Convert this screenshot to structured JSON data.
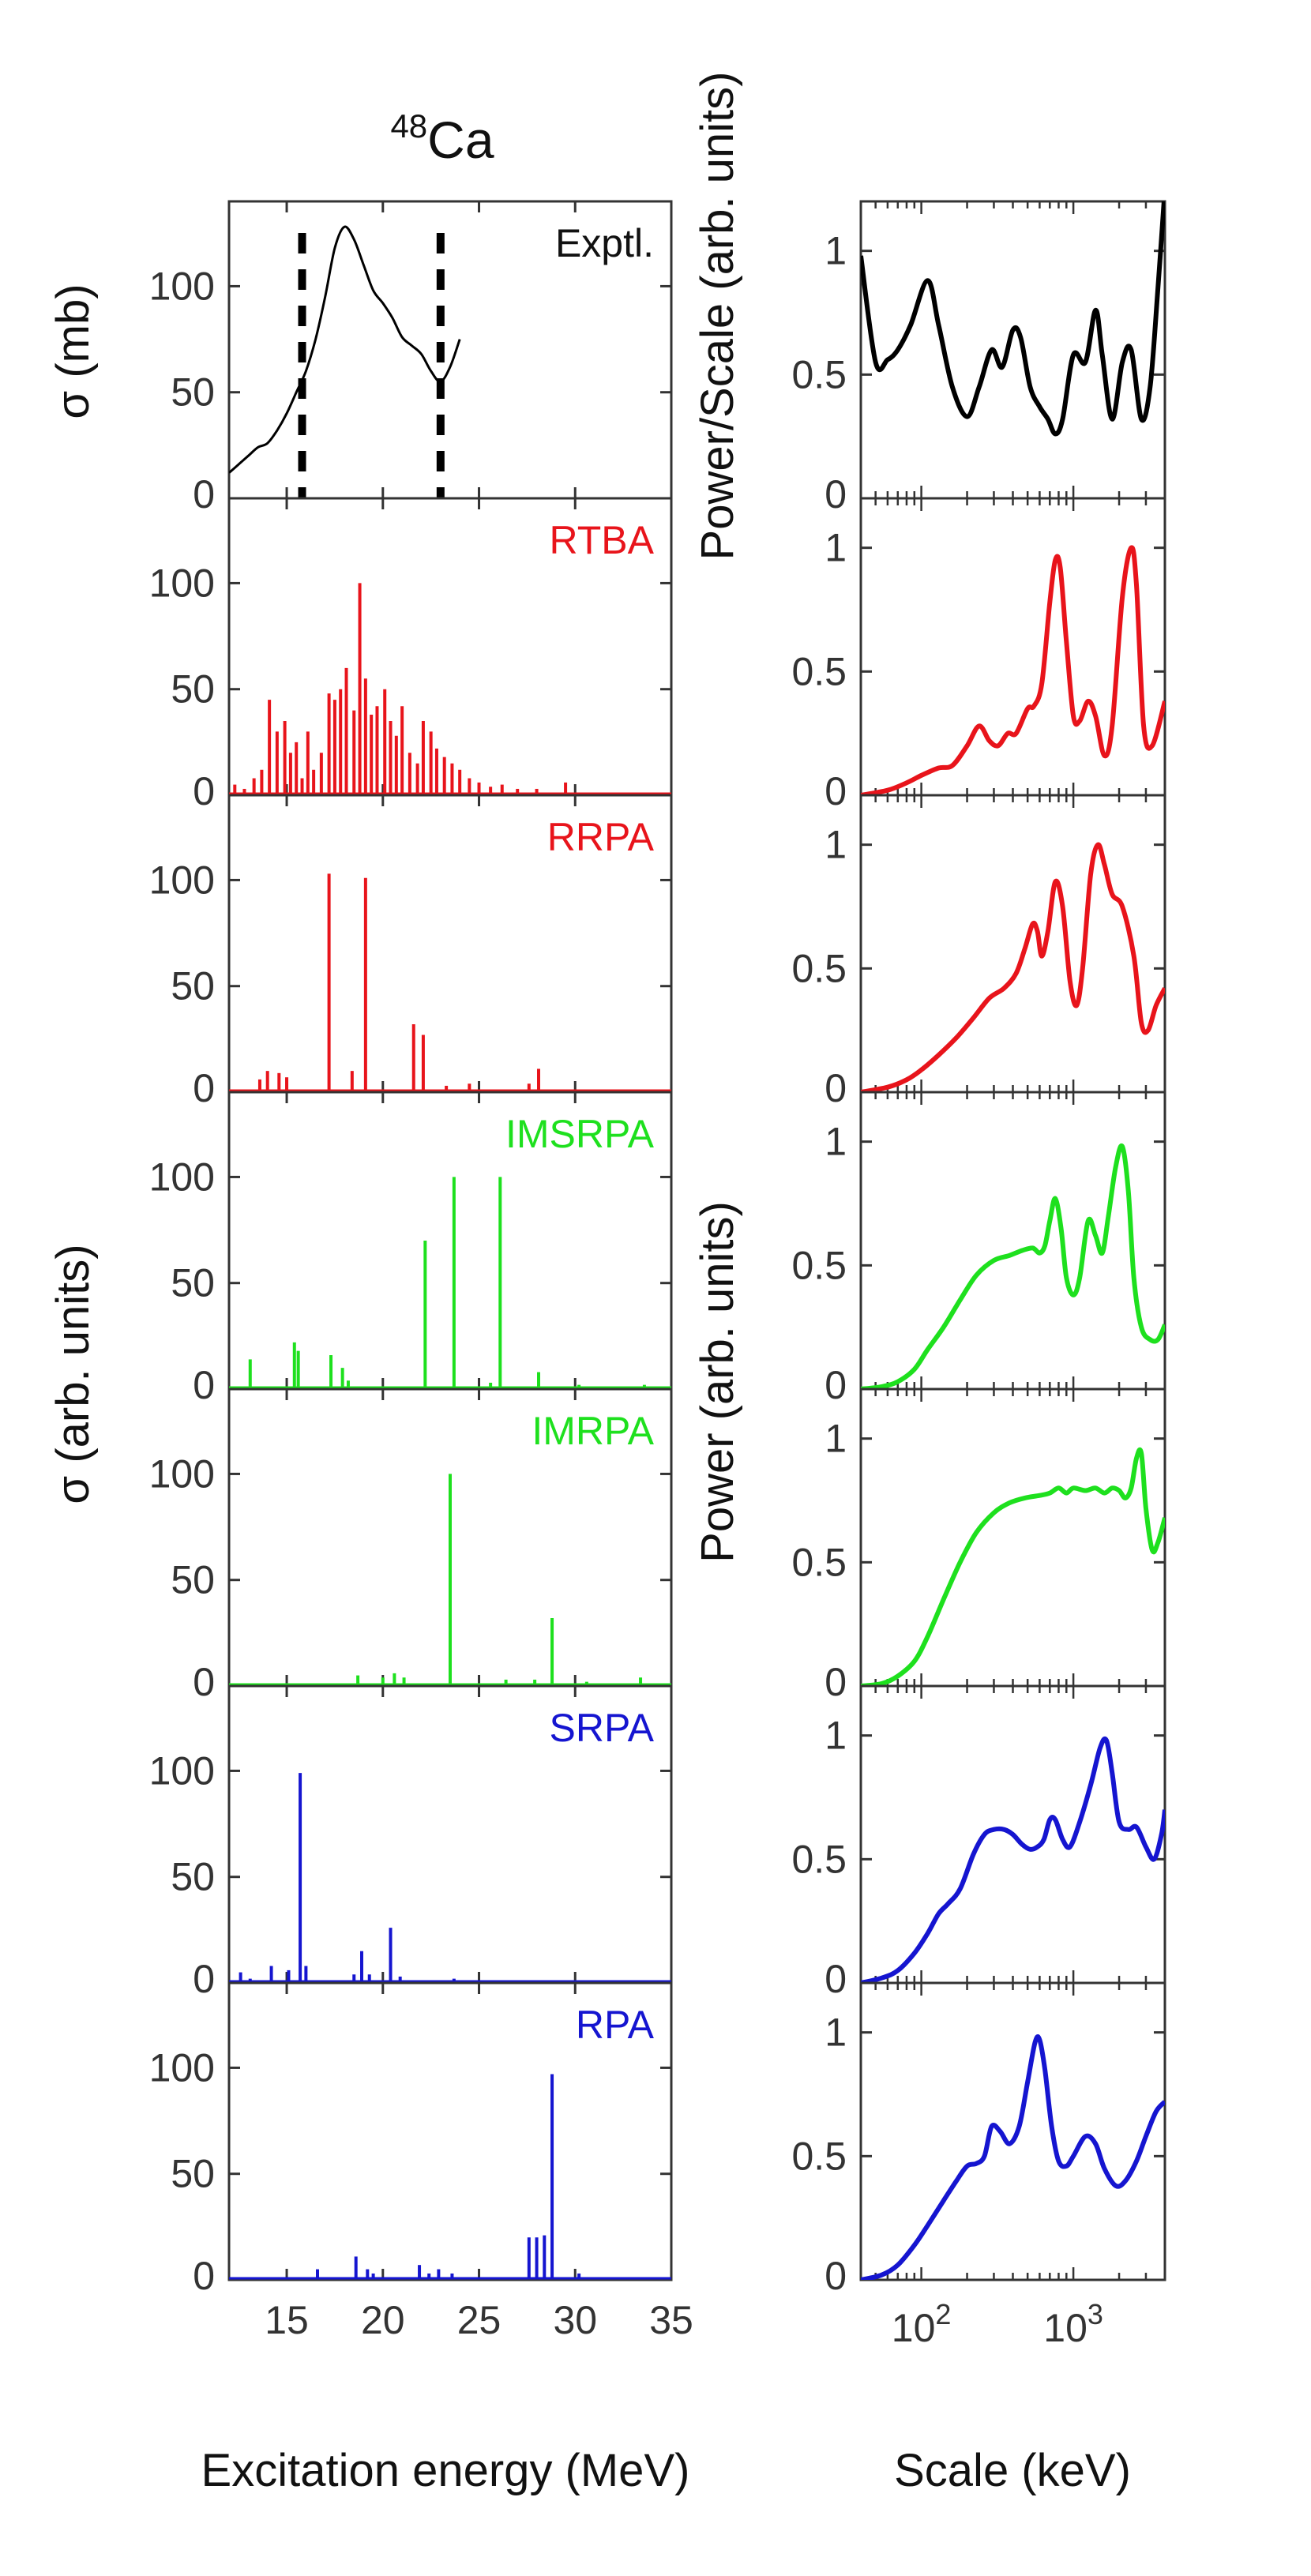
{
  "figure_title": {
    "superscript": "48",
    "element": "Ca"
  },
  "left_axis": {
    "ylabel_top": "σ (mb)",
    "ylabel_bottom": "σ (arb. units)",
    "xlabel": "Excitation energy (MeV)",
    "xticks": [
      "15",
      "20",
      "25",
      "30",
      "35"
    ]
  },
  "right_axis": {
    "ylabel_top": "Power/Scale (arb. units)",
    "ylabel_bottom": "Power (arb. units)",
    "xlabel": "Scale (keV)",
    "xticks": [
      {
        "base": "10",
        "exp": "2"
      },
      {
        "base": "10",
        "exp": "3"
      }
    ]
  },
  "colors": {
    "black": "#000000",
    "red": "#e8141b",
    "green": "#1ee01e",
    "blue": "#1515d0"
  },
  "chart_data": [
    {
      "type": "line",
      "panel": "left",
      "label": "Exptl.",
      "color": "black",
      "xlim": [
        12,
        35
      ],
      "ylim": [
        0,
        140
      ],
      "yticks": [
        "0",
        "50",
        "100"
      ],
      "dashed_markers_x": [
        15.8,
        23.0
      ],
      "x": [
        12.0,
        12.5,
        13.0,
        13.5,
        14.0,
        14.5,
        15.0,
        15.5,
        16.0,
        16.5,
        17.0,
        17.5,
        18.0,
        18.5,
        19.0,
        19.5,
        20.0,
        20.5,
        21.0,
        21.5,
        22.0,
        22.5,
        23.0,
        23.5,
        24.0
      ],
      "y": [
        12,
        16,
        20,
        24,
        26,
        32,
        40,
        50,
        60,
        75,
        95,
        118,
        128,
        122,
        110,
        98,
        92,
        85,
        76,
        72,
        68,
        60,
        55,
        62,
        75
      ]
    },
    {
      "type": "bar",
      "panel": "left",
      "label": "RTBA",
      "color": "red",
      "xlim": [
        12,
        35
      ],
      "ylim": [
        0,
        140
      ],
      "yticks": [
        "0",
        "50",
        "100"
      ],
      "x": [
        12.3,
        12.8,
        13.3,
        13.7,
        14.1,
        14.5,
        14.9,
        15.2,
        15.5,
        15.8,
        16.1,
        16.4,
        16.8,
        17.2,
        17.5,
        17.8,
        18.1,
        18.5,
        18.8,
        19.1,
        19.4,
        19.7,
        20.1,
        20.4,
        20.7,
        21.0,
        21.4,
        21.8,
        22.1,
        22.5,
        22.8,
        23.2,
        23.6,
        24.0,
        24.5,
        25.0,
        25.6,
        26.2,
        27.0,
        28.0,
        29.5
      ],
      "values": [
        5,
        3,
        8,
        12,
        45,
        30,
        35,
        20,
        25,
        8,
        30,
        12,
        20,
        48,
        45,
        50,
        60,
        40,
        100,
        55,
        38,
        42,
        50,
        35,
        28,
        42,
        20,
        15,
        35,
        30,
        22,
        18,
        15,
        12,
        8,
        6,
        4,
        5,
        3,
        3,
        6
      ]
    },
    {
      "type": "bar",
      "panel": "left",
      "label": "RRPA",
      "color": "red",
      "xlim": [
        12,
        35
      ],
      "ylim": [
        0,
        140
      ],
      "yticks": [
        "0",
        "50",
        "100"
      ],
      "x": [
        13.6,
        14.0,
        14.6,
        15.0,
        17.2,
        18.4,
        19.1,
        21.6,
        22.1,
        23.3,
        24.5,
        27.6,
        28.1
      ],
      "values": [
        6,
        10,
        9,
        7,
        103,
        10,
        101,
        32,
        27,
        3,
        4,
        4,
        11
      ]
    },
    {
      "type": "bar",
      "panel": "left",
      "label": "IMSRPA",
      "color": "green",
      "xlim": [
        12,
        35
      ],
      "ylim": [
        0,
        140
      ],
      "yticks": [
        "0",
        "50",
        "100"
      ],
      "x": [
        13.1,
        15.4,
        15.6,
        17.3,
        17.9,
        18.2,
        22.2,
        23.7,
        25.6,
        26.1,
        28.1,
        30.2,
        33.6
      ],
      "values": [
        14,
        22,
        18,
        16,
        10,
        4,
        70,
        100,
        3,
        100,
        8,
        2,
        2
      ]
    },
    {
      "type": "bar",
      "panel": "left",
      "label": "IMRPA",
      "color": "green",
      "xlim": [
        12,
        35
      ],
      "ylim": [
        0,
        140
      ],
      "yticks": [
        "0",
        "50",
        "100"
      ],
      "x": [
        18.7,
        20.0,
        20.6,
        21.1,
        23.5,
        26.4,
        27.9,
        28.8,
        30.6,
        33.4
      ],
      "values": [
        5,
        4,
        6,
        4,
        100,
        3,
        3,
        32,
        2,
        4
      ]
    },
    {
      "type": "bar",
      "panel": "left",
      "label": "SRPA",
      "color": "blue",
      "xlim": [
        12,
        35
      ],
      "ylim": [
        0,
        140
      ],
      "yticks": [
        "0",
        "50",
        "100"
      ],
      "x": [
        12.6,
        13.1,
        14.2,
        15.1,
        15.7,
        16.0,
        18.5,
        18.9,
        19.3,
        20.4,
        20.9,
        23.7
      ],
      "values": [
        5,
        2,
        8,
        6,
        99,
        8,
        4,
        15,
        4,
        26,
        3,
        2
      ]
    },
    {
      "type": "bar",
      "panel": "left",
      "label": "RPA",
      "color": "blue",
      "xlim": [
        12,
        35
      ],
      "ylim": [
        0,
        140
      ],
      "yticks": [
        "0",
        "50",
        "100"
      ],
      "x": [
        16.6,
        18.6,
        19.2,
        19.5,
        21.9,
        22.4,
        22.9,
        23.6,
        27.6,
        28.0,
        28.4,
        28.8,
        30.2
      ],
      "values": [
        5,
        11,
        5,
        3,
        7,
        3,
        5,
        3,
        20,
        20,
        21,
        97,
        3
      ]
    },
    {
      "type": "line",
      "panel": "right",
      "color": "black",
      "xlim": [
        40,
        4000
      ],
      "ylim": [
        0,
        1.2
      ],
      "yticks": [
        "0",
        "0.5",
        "1"
      ],
      "x": [
        40,
        50,
        60,
        70,
        85,
        110,
        130,
        160,
        200,
        240,
        290,
        340,
        400,
        450,
        520,
        600,
        680,
        760,
        850,
        1000,
        1200,
        1400,
        1550,
        1800,
        2100,
        2400,
        2800,
        3200,
        3600,
        4000
      ],
      "y": [
        0.98,
        0.55,
        0.56,
        0.6,
        0.7,
        0.88,
        0.7,
        0.45,
        0.33,
        0.45,
        0.6,
        0.53,
        0.68,
        0.65,
        0.45,
        0.37,
        0.32,
        0.26,
        0.32,
        0.58,
        0.55,
        0.76,
        0.58,
        0.32,
        0.55,
        0.6,
        0.32,
        0.45,
        0.85,
        1.25
      ]
    },
    {
      "type": "line",
      "panel": "right",
      "color": "red",
      "xlim": [
        40,
        4000
      ],
      "ylim": [
        0,
        1.2
      ],
      "yticks": [
        "0",
        "0.5",
        "1"
      ],
      "x": [
        40,
        60,
        80,
        100,
        130,
        160,
        200,
        240,
        280,
        320,
        370,
        420,
        500,
        550,
        620,
        700,
        760,
        820,
        900,
        1000,
        1100,
        1250,
        1400,
        1600,
        1800,
        2100,
        2400,
        2600,
        2900,
        3300,
        4000
      ],
      "y": [
        0,
        0.02,
        0.05,
        0.08,
        0.11,
        0.12,
        0.2,
        0.28,
        0.22,
        0.2,
        0.25,
        0.25,
        0.35,
        0.36,
        0.45,
        0.78,
        0.95,
        0.92,
        0.62,
        0.32,
        0.3,
        0.38,
        0.32,
        0.16,
        0.28,
        0.8,
        1.0,
        0.85,
        0.28,
        0.2,
        0.38
      ]
    },
    {
      "type": "line",
      "panel": "right",
      "color": "red",
      "xlim": [
        40,
        4000
      ],
      "ylim": [
        0,
        1.2
      ],
      "yticks": [
        "0",
        "0.5",
        "1"
      ],
      "x": [
        40,
        60,
        80,
        100,
        130,
        170,
        220,
        280,
        350,
        420,
        480,
        540,
        580,
        620,
        680,
        760,
        850,
        950,
        1050,
        1150,
        1300,
        1450,
        1600,
        1800,
        2100,
        2500,
        2800,
        3100,
        3500,
        4000
      ],
      "y": [
        0,
        0.02,
        0.05,
        0.09,
        0.15,
        0.22,
        0.3,
        0.38,
        0.42,
        0.48,
        0.58,
        0.68,
        0.65,
        0.55,
        0.65,
        0.85,
        0.75,
        0.45,
        0.35,
        0.5,
        0.88,
        1.0,
        0.92,
        0.8,
        0.75,
        0.55,
        0.28,
        0.25,
        0.35,
        0.42
      ]
    },
    {
      "type": "line",
      "panel": "right",
      "color": "green",
      "xlim": [
        40,
        4000
      ],
      "ylim": [
        0,
        1.2
      ],
      "yticks": [
        "0",
        "0.5",
        "1"
      ],
      "x": [
        40,
        55,
        70,
        90,
        110,
        140,
        180,
        230,
        300,
        380,
        460,
        540,
        600,
        650,
        700,
        760,
        830,
        900,
        1000,
        1100,
        1250,
        1400,
        1550,
        1700,
        1900,
        2100,
        2300,
        2500,
        2800,
        3200,
        3600,
        4000
      ],
      "y": [
        0,
        0.01,
        0.03,
        0.08,
        0.16,
        0.25,
        0.36,
        0.46,
        0.52,
        0.54,
        0.56,
        0.57,
        0.55,
        0.58,
        0.68,
        0.77,
        0.65,
        0.45,
        0.38,
        0.45,
        0.68,
        0.62,
        0.55,
        0.7,
        0.9,
        0.98,
        0.8,
        0.45,
        0.25,
        0.2,
        0.2,
        0.26
      ]
    },
    {
      "type": "line",
      "panel": "right",
      "color": "green",
      "xlim": [
        40,
        4000
      ],
      "ylim": [
        0,
        1.2
      ],
      "yticks": [
        "0",
        "0.5",
        "1"
      ],
      "x": [
        40,
        55,
        70,
        90,
        110,
        140,
        180,
        230,
        300,
        380,
        480,
        600,
        700,
        800,
        900,
        1000,
        1200,
        1400,
        1600,
        1800,
        2000,
        2200,
        2400,
        2600,
        2800,
        3000,
        3300,
        3600,
        4000
      ],
      "y": [
        0,
        0.01,
        0.04,
        0.1,
        0.2,
        0.35,
        0.5,
        0.62,
        0.7,
        0.74,
        0.76,
        0.77,
        0.78,
        0.8,
        0.78,
        0.8,
        0.79,
        0.8,
        0.78,
        0.8,
        0.79,
        0.76,
        0.8,
        0.92,
        0.94,
        0.72,
        0.55,
        0.58,
        0.68
      ]
    },
    {
      "type": "line",
      "panel": "right",
      "color": "blue",
      "xlim": [
        40,
        4000
      ],
      "ylim": [
        0,
        1.2
      ],
      "yticks": [
        "0",
        "0.5",
        "1"
      ],
      "x": [
        40,
        55,
        70,
        90,
        110,
        130,
        150,
        180,
        220,
        260,
        300,
        350,
        400,
        460,
        520,
        580,
        640,
        700,
        760,
        850,
        950,
        1100,
        1300,
        1500,
        1650,
        1800,
        2000,
        2300,
        2600,
        3000,
        3400,
        3800,
        4000
      ],
      "y": [
        0,
        0.02,
        0.05,
        0.12,
        0.2,
        0.28,
        0.32,
        0.38,
        0.52,
        0.6,
        0.62,
        0.62,
        0.6,
        0.56,
        0.54,
        0.55,
        0.58,
        0.66,
        0.66,
        0.58,
        0.55,
        0.65,
        0.8,
        0.95,
        0.98,
        0.85,
        0.65,
        0.62,
        0.63,
        0.55,
        0.5,
        0.6,
        0.7
      ]
    },
    {
      "type": "line",
      "panel": "right",
      "color": "blue",
      "xlim": [
        40,
        4000
      ],
      "ylim": [
        0,
        1.2
      ],
      "yticks": [
        "0",
        "0.5",
        "1"
      ],
      "x": [
        40,
        55,
        70,
        90,
        110,
        140,
        170,
        200,
        230,
        260,
        290,
        330,
        380,
        440,
        500,
        560,
        600,
        650,
        720,
        800,
        900,
        1000,
        1200,
        1400,
        1600,
        1900,
        2200,
        2600,
        3000,
        3500,
        4000
      ],
      "y": [
        0,
        0.02,
        0.06,
        0.14,
        0.22,
        0.32,
        0.4,
        0.46,
        0.47,
        0.5,
        0.62,
        0.6,
        0.55,
        0.62,
        0.8,
        0.96,
        0.97,
        0.85,
        0.62,
        0.48,
        0.46,
        0.5,
        0.58,
        0.55,
        0.45,
        0.38,
        0.4,
        0.48,
        0.58,
        0.68,
        0.72
      ]
    }
  ]
}
